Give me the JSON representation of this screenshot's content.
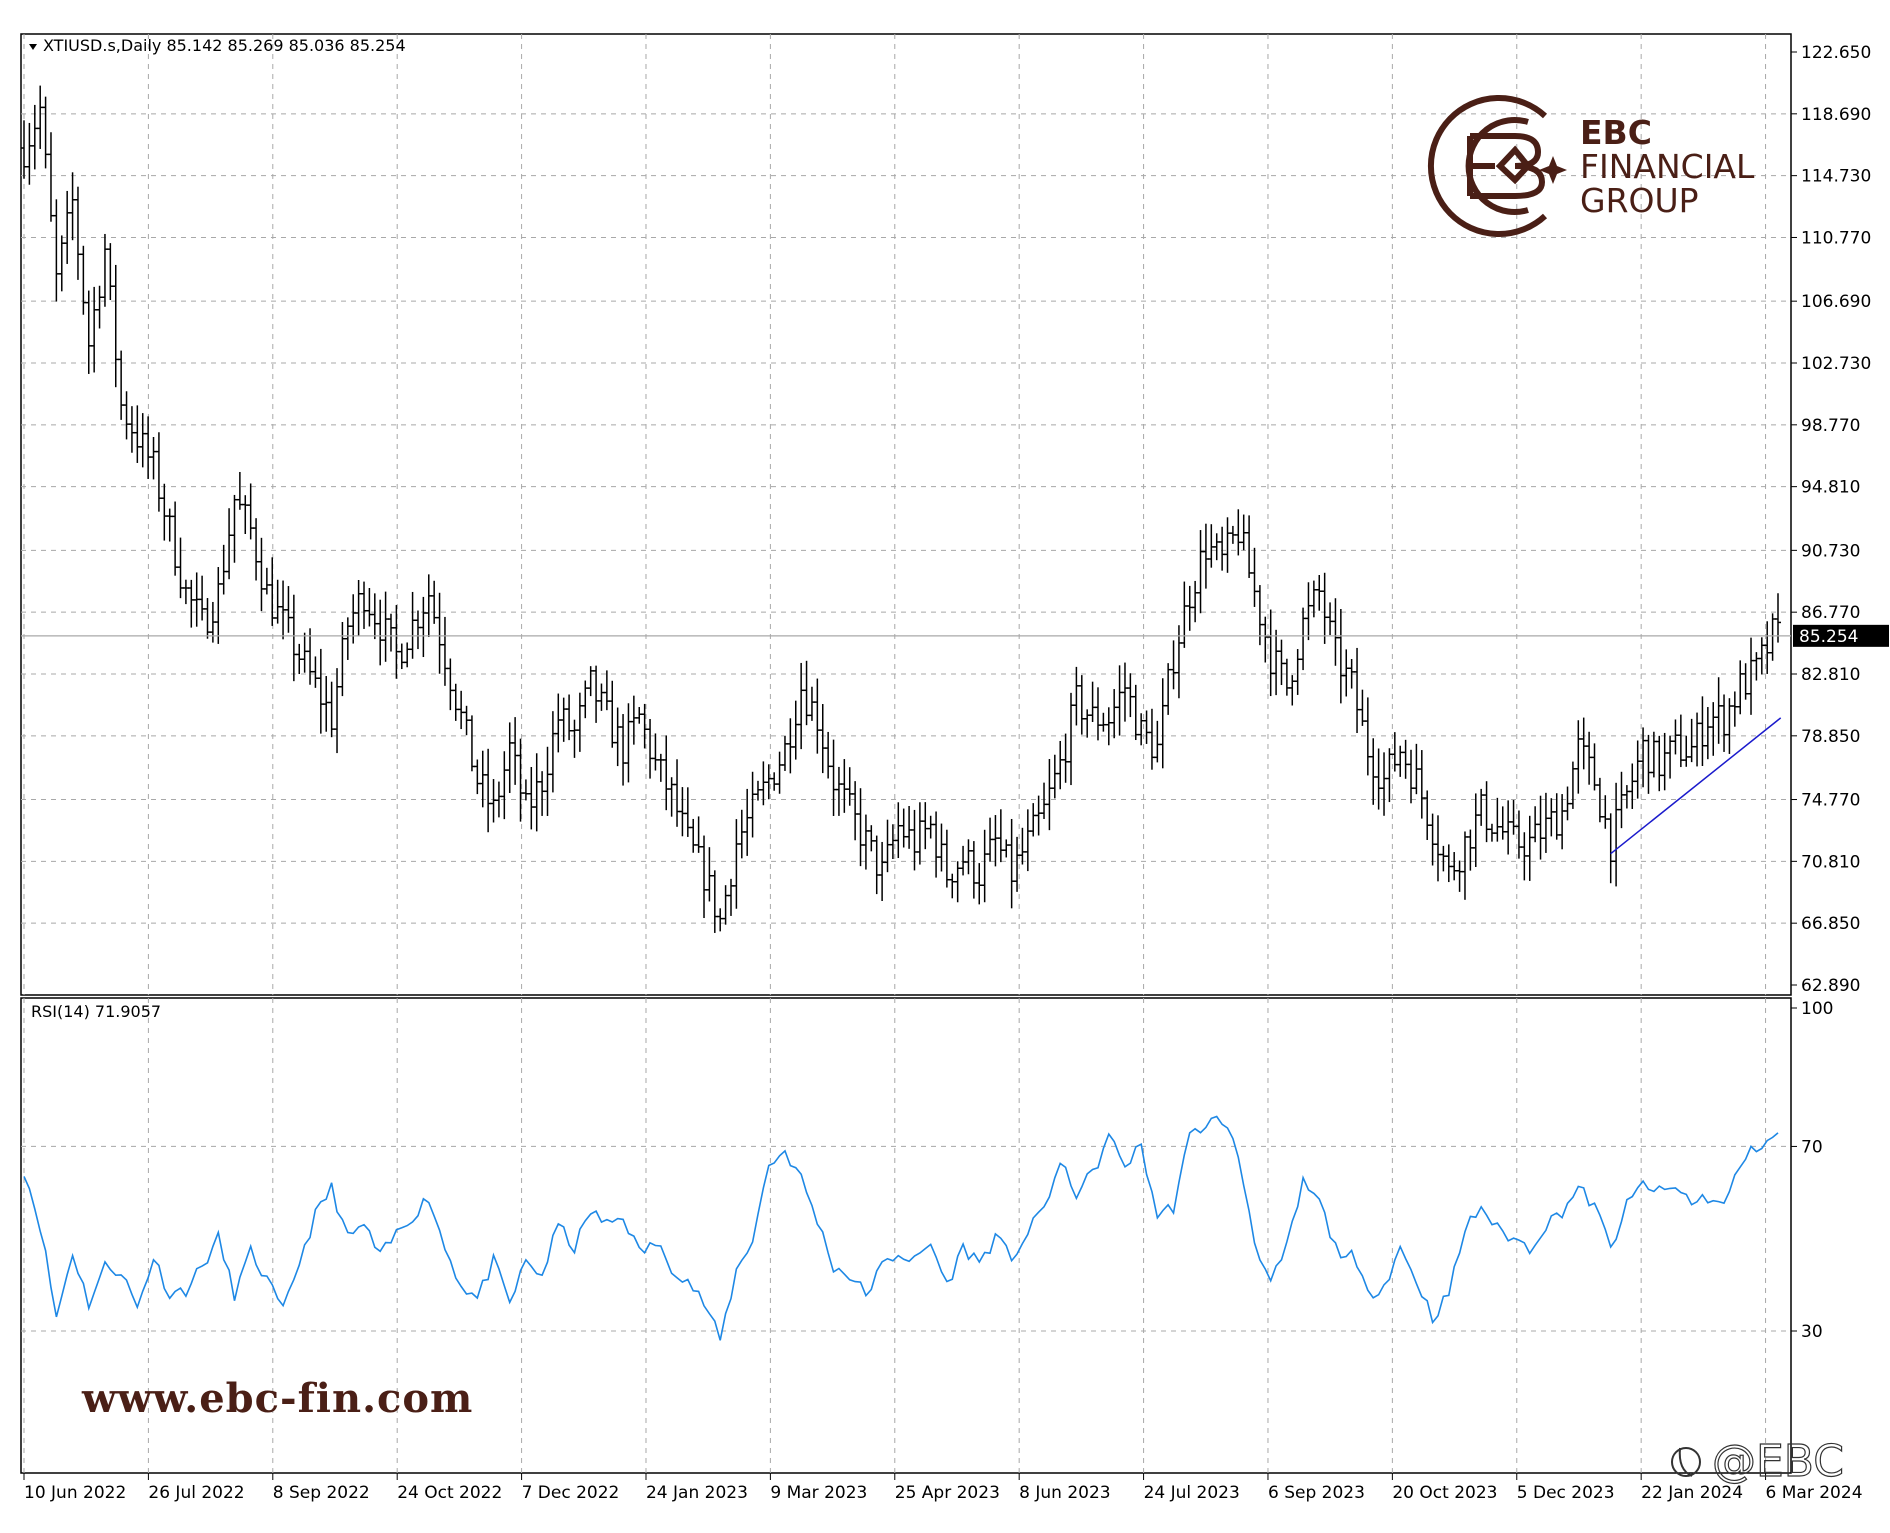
{
  "header": {
    "symbol_line": "XTIUSD.s,Daily  85.142 85.269 85.036 85.254",
    "rsi_line": "RSI(14) 71.9057"
  },
  "watermark": {
    "brand_line1": "EBC",
    "brand_line2": "FINANCIAL",
    "brand_line3": "GROUP",
    "url": "www.ebc-fin.com",
    "handle": "@EBC",
    "logo_icon": "ebc-monogram-logo-icon",
    "handle_icon": "social-handle-icon"
  },
  "colors": {
    "bars": "#000000",
    "rsi_line": "#1e88e5",
    "trendline": "#1a1acc",
    "grid": "#a8a8a8",
    "brand": "#4a1f16"
  },
  "chart_data": [
    {
      "type": "ohlc",
      "title": "XTIUSD.s,Daily",
      "ylim": [
        62.89,
        122.65
      ],
      "yticks": [
        "122.650",
        "118.690",
        "114.730",
        "110.770",
        "106.690",
        "102.730",
        "98.770",
        "94.810",
        "90.730",
        "86.770",
        "82.810",
        "78.850",
        "74.770",
        "70.810",
        "66.850",
        "62.890"
      ],
      "current_price": 85.254,
      "current_price_label": "85.254",
      "xticks": [
        "10 Jun 2022",
        "26 Jul 2022",
        "8 Sep 2022",
        "24 Oct 2022",
        "7 Dec 2022",
        "24 Jan 2023",
        "9 Mar 2023",
        "25 Apr 2023",
        "8 Jun 2023",
        "24 Jul 2023",
        "6 Sep 2023",
        "20 Oct 2023",
        "5 Dec 2023",
        "22 Jan 2024",
        "6 Mar 2024"
      ],
      "close_path": [
        [
          0,
          116.5
        ],
        [
          3,
          119
        ],
        [
          6,
          108
        ],
        [
          9,
          113
        ],
        [
          12,
          104
        ],
        [
          15,
          110
        ],
        [
          18,
          100
        ],
        [
          21,
          98
        ],
        [
          24,
          96
        ],
        [
          27,
          92
        ],
        [
          30,
          88
        ],
        [
          33,
          86
        ],
        [
          36,
          88
        ],
        [
          39,
          94
        ],
        [
          42,
          92
        ],
        [
          45,
          88
        ],
        [
          48,
          86
        ],
        [
          51,
          84
        ],
        [
          54,
          82
        ],
        [
          57,
          80
        ],
        [
          60,
          86
        ],
        [
          63,
          88
        ],
        [
          66,
          86
        ],
        [
          69,
          84
        ],
        [
          72,
          86
        ],
        [
          75,
          88
        ],
        [
          78,
          84
        ],
        [
          81,
          80
        ],
        [
          84,
          76
        ],
        [
          87,
          74
        ],
        [
          90,
          78
        ],
        [
          93,
          74
        ],
        [
          96,
          76
        ],
        [
          99,
          80
        ],
        [
          102,
          79
        ],
        [
          105,
          82
        ],
        [
          108,
          80
        ],
        [
          111,
          78
        ],
        [
          114,
          80
        ],
        [
          117,
          77
        ],
        [
          120,
          75
        ],
        [
          123,
          72
        ],
        [
          126,
          70
        ],
        [
          129,
          67
        ],
        [
          132,
          72
        ],
        [
          135,
          74
        ],
        [
          138,
          76
        ],
        [
          141,
          78
        ],
        [
          144,
          82
        ],
        [
          147,
          80
        ],
        [
          150,
          76
        ],
        [
          153,
          74
        ],
        [
          156,
          72
        ],
        [
          159,
          70
        ],
        [
          162,
          73
        ],
        [
          165,
          72
        ],
        [
          168,
          73
        ],
        [
          171,
          70
        ],
        [
          174,
          71
        ],
        [
          177,
          70
        ],
        [
          180,
          72
        ],
        [
          183,
          70
        ],
        [
          186,
          72
        ],
        [
          189,
          74
        ],
        [
          192,
          77
        ],
        [
          195,
          81
        ],
        [
          198,
          80
        ],
        [
          201,
          80
        ],
        [
          204,
          82
        ],
        [
          207,
          79
        ],
        [
          210,
          78
        ],
        [
          213,
          84
        ],
        [
          216,
          88
        ],
        [
          219,
          91
        ],
        [
          222,
          90
        ],
        [
          225,
          92
        ],
        [
          228,
          88
        ],
        [
          231,
          84
        ],
        [
          234,
          82
        ],
        [
          237,
          86
        ],
        [
          240,
          88
        ],
        [
          243,
          84
        ],
        [
          246,
          82
        ],
        [
          249,
          78
        ],
        [
          252,
          76
        ],
        [
          255,
          78
        ],
        [
          258,
          76
        ],
        [
          261,
          73
        ],
        [
          264,
          70
        ],
        [
          267,
          72
        ],
        [
          270,
          74
        ],
        [
          273,
          73
        ],
        [
          276,
          72
        ],
        [
          279,
          72
        ],
        [
          282,
          73
        ],
        [
          285,
          74
        ],
        [
          288,
          78
        ],
        [
          291,
          76
        ],
        [
          294,
          72
        ],
        [
          297,
          75
        ],
        [
          300,
          78
        ],
        [
          303,
          77
        ],
        [
          306,
          78
        ],
        [
          309,
          78
        ],
        [
          312,
          80
        ],
        [
          315,
          80
        ],
        [
          318,
          82
        ],
        [
          321,
          83
        ],
        [
          324,
          85.25
        ]
      ],
      "trendline": {
        "start": [
          294,
          71.3
        ],
        "end": [
          325.5,
          80.0
        ]
      }
    },
    {
      "type": "line",
      "title": "RSI(14)",
      "value_label": "71.9057",
      "ylim": [
        0,
        100
      ],
      "yticks": [
        "100",
        "70",
        "30"
      ],
      "levels": [
        70,
        30
      ],
      "series_path": [
        [
          0,
          65
        ],
        [
          3,
          53
        ],
        [
          6,
          33
        ],
        [
          9,
          47
        ],
        [
          12,
          36
        ],
        [
          15,
          44
        ],
        [
          18,
          43
        ],
        [
          21,
          35
        ],
        [
          24,
          46
        ],
        [
          27,
          38
        ],
        [
          30,
          39
        ],
        [
          33,
          44
        ],
        [
          36,
          50
        ],
        [
          39,
          38
        ],
        [
          42,
          47
        ],
        [
          45,
          41
        ],
        [
          48,
          34
        ],
        [
          51,
          45
        ],
        [
          54,
          55
        ],
        [
          57,
          61
        ],
        [
          60,
          50
        ],
        [
          63,
          53
        ],
        [
          66,
          46
        ],
        [
          69,
          51
        ],
        [
          72,
          55
        ],
        [
          75,
          59
        ],
        [
          78,
          48
        ],
        [
          81,
          40
        ],
        [
          84,
          37
        ],
        [
          87,
          45
        ],
        [
          90,
          36
        ],
        [
          93,
          45
        ],
        [
          96,
          42
        ],
        [
          99,
          53
        ],
        [
          102,
          48
        ],
        [
          105,
          56
        ],
        [
          108,
          53
        ],
        [
          111,
          55
        ],
        [
          114,
          47
        ],
        [
          117,
          49
        ],
        [
          120,
          44
        ],
        [
          123,
          41
        ],
        [
          126,
          36
        ],
        [
          129,
          28
        ],
        [
          132,
          43
        ],
        [
          135,
          50
        ],
        [
          138,
          66
        ],
        [
          141,
          69
        ],
        [
          144,
          63
        ],
        [
          147,
          54
        ],
        [
          150,
          44
        ],
        [
          153,
          42
        ],
        [
          156,
          38
        ],
        [
          159,
          44
        ],
        [
          162,
          47
        ],
        [
          165,
          45
        ],
        [
          168,
          49
        ],
        [
          171,
          40
        ],
        [
          174,
          48
        ],
        [
          177,
          45
        ],
        [
          180,
          50
        ],
        [
          183,
          46
        ],
        [
          186,
          51
        ],
        [
          189,
          57
        ],
        [
          192,
          66
        ],
        [
          195,
          60
        ],
        [
          198,
          64
        ],
        [
          201,
          72
        ],
        [
          204,
          66
        ],
        [
          207,
          70
        ],
        [
          210,
          55
        ],
        [
          213,
          57
        ],
        [
          216,
          72
        ],
        [
          219,
          75
        ],
        [
          222,
          76
        ],
        [
          225,
          68
        ],
        [
          228,
          50
        ],
        [
          231,
          40
        ],
        [
          234,
          48
        ],
        [
          237,
          62
        ],
        [
          240,
          58
        ],
        [
          243,
          48
        ],
        [
          246,
          46
        ],
        [
          249,
          38
        ],
        [
          252,
          40
        ],
        [
          255,
          48
        ],
        [
          258,
          41
        ],
        [
          261,
          33
        ],
        [
          264,
          38
        ],
        [
          267,
          52
        ],
        [
          270,
          57
        ],
        [
          273,
          52
        ],
        [
          276,
          50
        ],
        [
          279,
          48
        ],
        [
          282,
          53
        ],
        [
          285,
          56
        ],
        [
          288,
          61
        ],
        [
          291,
          57
        ],
        [
          294,
          48
        ],
        [
          297,
          57
        ],
        [
          300,
          62
        ],
        [
          303,
          60
        ],
        [
          306,
          61
        ],
        [
          309,
          58
        ],
        [
          312,
          59
        ],
        [
          315,
          57
        ],
        [
          318,
          66
        ],
        [
          321,
          70
        ],
        [
          324,
          72
        ]
      ]
    }
  ]
}
